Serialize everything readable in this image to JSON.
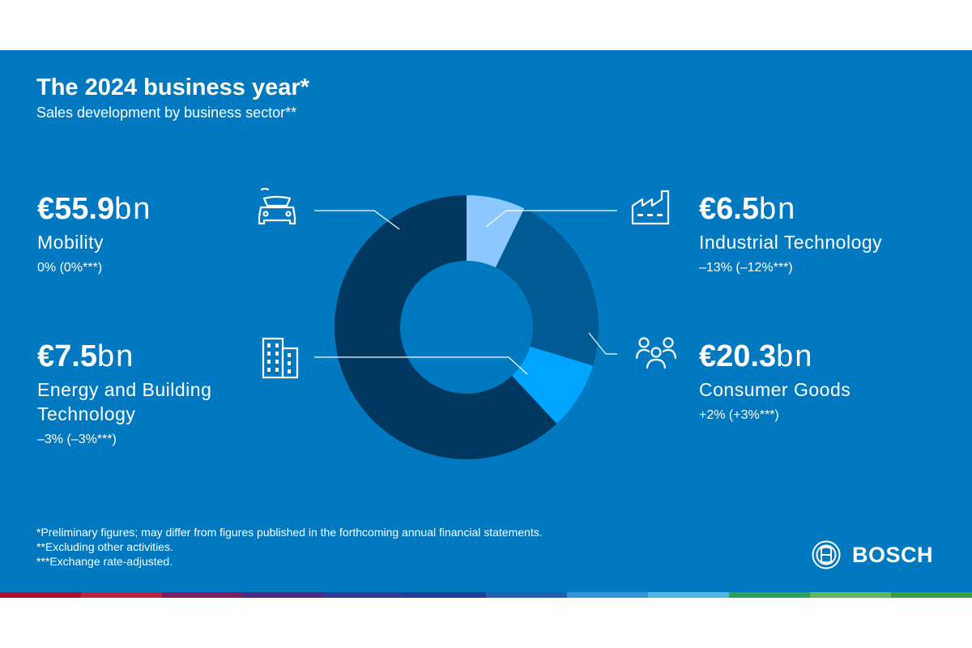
{
  "title": "The 2024 business year*",
  "subtitle": "Sales development by business sector**",
  "chart_data": {
    "type": "pie",
    "donut": true,
    "unit": "€ bn",
    "series": [
      {
        "name": "Industrial Technology",
        "value": 6.5,
        "color": "#8cc8ff",
        "amount_bold": "€6.5",
        "amount_unit": "bn",
        "change": "–13% (–12%***)",
        "icon": "factory-icon"
      },
      {
        "name": "Consumer Goods",
        "value": 20.3,
        "color": "#005a93",
        "amount_bold": "€20.3",
        "amount_unit": "bn",
        "change": "+2% (+3%***)",
        "icon": "people-icon"
      },
      {
        "name": "Energy and Building Technology",
        "value": 7.5,
        "color": "#00a5ff",
        "amount_bold": "€7.5",
        "amount_unit": "bn",
        "change": "–3% (–3%***)",
        "icon": "building-icon"
      },
      {
        "name": "Mobility",
        "value": 55.9,
        "color": "#00375e",
        "amount_bold": "€55.9",
        "amount_unit": "bn",
        "change": "0% (0%***)",
        "icon": "connected-car-icon"
      }
    ]
  },
  "labels": {
    "mobility": {
      "amount_bold": "€55.9",
      "amount_unit": "bn",
      "name": "Mobility",
      "change": "0% (0%***)"
    },
    "energy": {
      "amount_bold": "€7.5",
      "amount_unit": "bn",
      "name_line1": "Energy and Building",
      "name_line2": "Technology",
      "change": "–3% (–3%***)"
    },
    "industrial": {
      "amount_bold": "€6.5",
      "amount_unit": "bn",
      "name": "Industrial Technology",
      "change": "–13% (–12%***)"
    },
    "consumer": {
      "amount_bold": "€20.3",
      "amount_unit": "bn",
      "name": "Consumer Goods",
      "change": "+2% (+3%***)"
    }
  },
  "footnotes": [
    "*Preliminary figures; may differ from figures published in the forthcoming annual financial statements.",
    "**Excluding other activities.",
    "***Exchange rate-adjusted."
  ],
  "brand": {
    "name": "BOSCH",
    "logo_icon": "bosch-armature-icon"
  },
  "colors": {
    "background": "#0079c1",
    "text": "#ffffff"
  },
  "stripe_colors": [
    "#b0102e",
    "#c0233d",
    "#7d1e63",
    "#4a2a86",
    "#2c3b95",
    "#1d3f9a",
    "#1f62b0",
    "#3494d6",
    "#54b6e6",
    "#2ca15a",
    "#5fb85c",
    "#3a9d41"
  ]
}
